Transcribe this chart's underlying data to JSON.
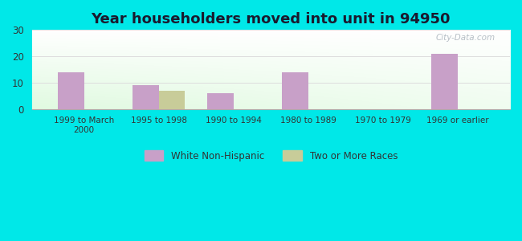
{
  "title": "Year householders moved into unit in 94950",
  "categories": [
    "1999 to March\n2000",
    "1995 to 1998",
    "1990 to 1994",
    "1980 to 1989",
    "1970 to 1979",
    "1969 or earlier"
  ],
  "white_non_hispanic": [
    14,
    9,
    6,
    14,
    0,
    21
  ],
  "two_or_more_races": [
    0,
    7,
    0,
    0,
    0,
    0
  ],
  "bar_color_white": "#c8a0c8",
  "bar_color_two": "#c8cc99",
  "ylim": [
    0,
    30
  ],
  "yticks": [
    0,
    10,
    20,
    30
  ],
  "background_outer": "#00e8e8",
  "grid_color": "#dddddd",
  "title_fontsize": 13,
  "bar_width": 0.35,
  "watermark": "City-Data.com"
}
